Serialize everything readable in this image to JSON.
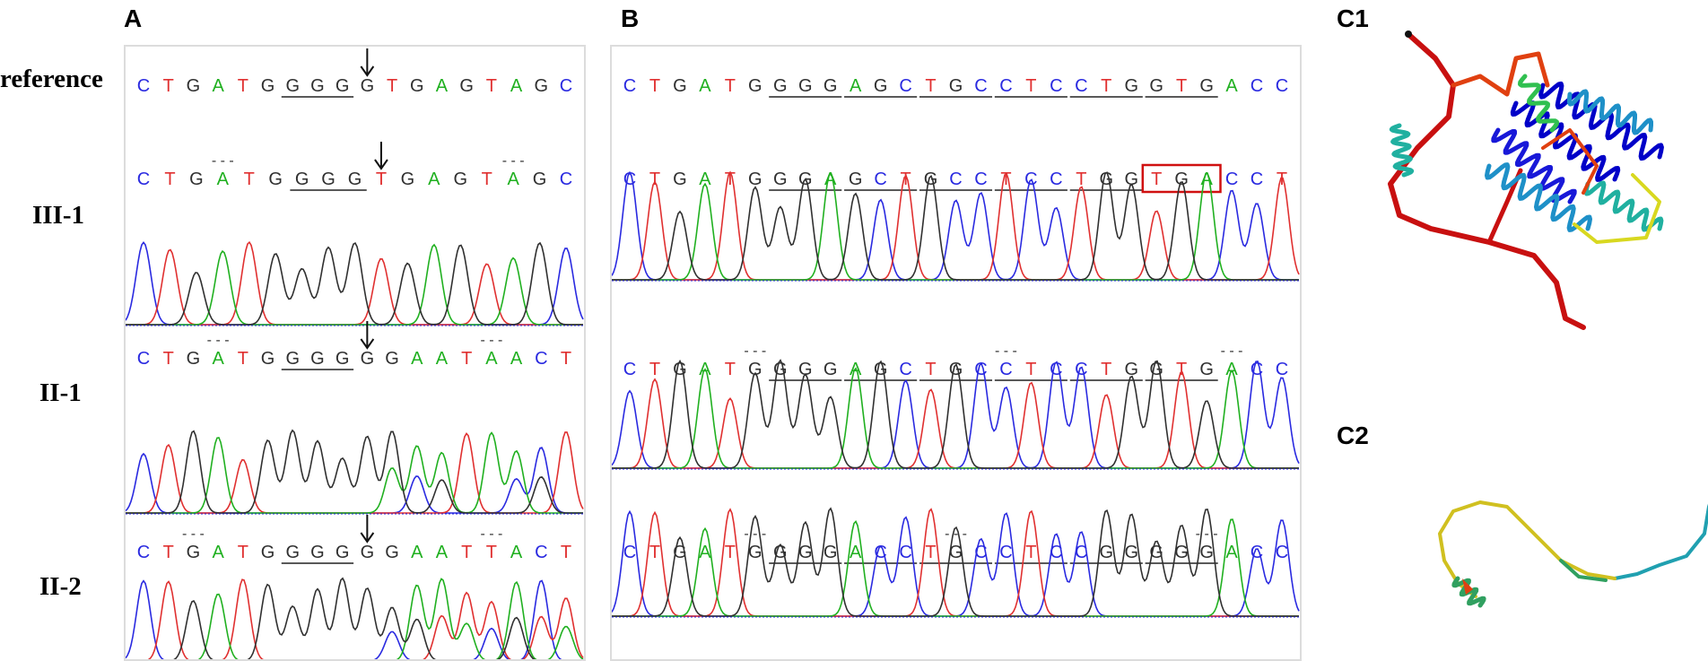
{
  "panel_labels": {
    "a": "A",
    "b": "B",
    "c1": "C1",
    "c2": "C2"
  },
  "row_labels": {
    "reference": "reference",
    "iii1": "III-1",
    "ii1": "II-1",
    "ii2": "II-2"
  },
  "colors": {
    "A": "#20b020",
    "C": "#2a2ae0",
    "G": "#303030",
    "T": "#e03030",
    "highlight_box": "#d01010",
    "panel_border": "#dcdcdc"
  },
  "panel_a": {
    "reference": "CTGATGGGGGTGAGTAGC",
    "rows": [
      {
        "label": "III-1",
        "seq": "CTGATGGGGTGAGTAGC"
      },
      {
        "label": "II-1",
        "seq": "CTGATGGGGGGAATAACT"
      },
      {
        "label": "II-2",
        "seq": "CTGATGGGGGGAATTACT"
      }
    ]
  },
  "panel_b": {
    "reference": "CTGATGGGGAGCTGCCTCCTGGTGACC",
    "rows": [
      {
        "label": "III-1",
        "seq": "CTGATGGGAGCTGCCTCCTGGTGACCT"
      },
      {
        "label": "II-1",
        "seq": "CTGATGGGGAGCTGCCTCCTGGTGACC"
      },
      {
        "label": "II-2",
        "seq": "CTGATGGGGACCTGCCTCCGGGGGACC"
      }
    ]
  },
  "structures": {
    "c1_colors": [
      "#0000c8",
      "#1818d8",
      "#1e90c8",
      "#20b0a0",
      "#30c050",
      "#d8d820",
      "#e04010",
      "#c81010"
    ],
    "c2_colors": [
      "#d0c020",
      "#c8a000",
      "#30a060",
      "#20a0b0",
      "#e04010"
    ]
  }
}
